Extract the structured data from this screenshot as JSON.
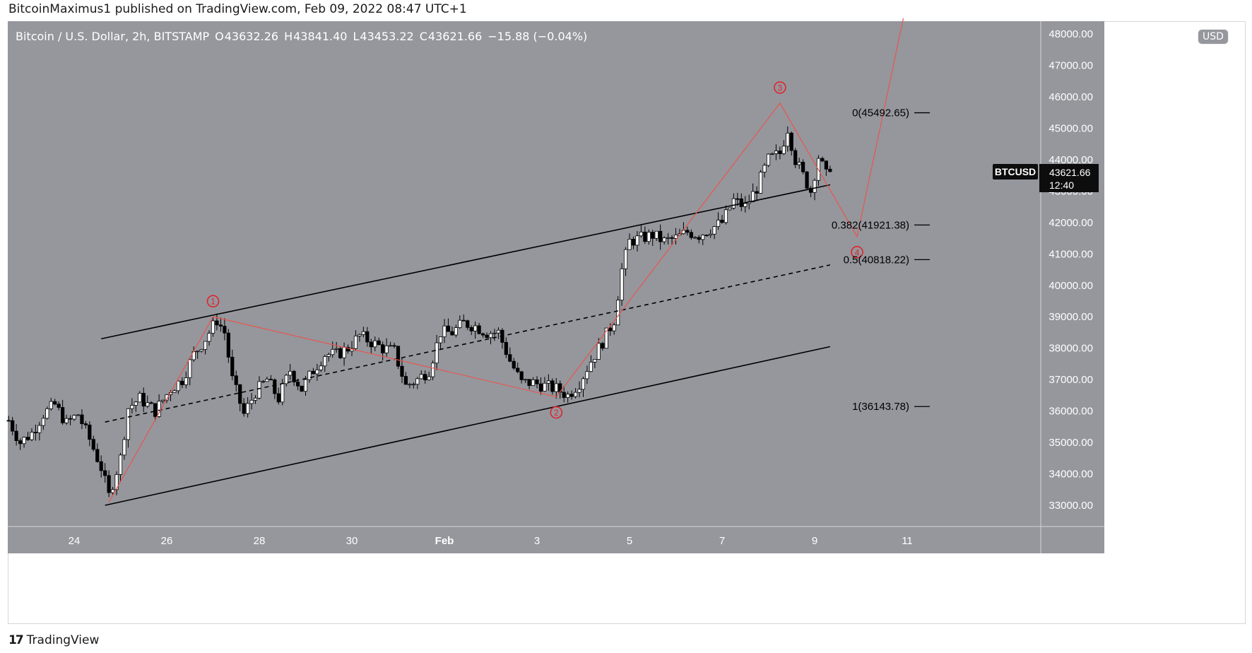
{
  "header": {
    "text": "BitcoinMaximus1 published on TradingView.com, Feb 09, 2022 08:47 UTC+1"
  },
  "legend": {
    "symbol": "Bitcoin / U.S. Dollar, 2h, BITSTAMP",
    "open_label": "O",
    "open": "43632.26",
    "high_label": "H",
    "high": "43841.40",
    "low_label": "L",
    "low": "43453.22",
    "close_label": "C",
    "close": "43621.66",
    "change": "−15.88 (−0.04%)"
  },
  "currency_badge": "USD",
  "price_tag": {
    "ticker": "BTCUSD",
    "price": "43621.66",
    "countdown": "12:40"
  },
  "footer": {
    "logo_glyph": "17",
    "brand": "TradingView"
  },
  "colors": {
    "background": "#95979d",
    "axis_bg": "#95979d",
    "up_candle": "#ffffff",
    "down_candle": "#000000",
    "wave_line": "#e8564f",
    "channel": "#000000",
    "wave_label": "#e0242a"
  },
  "chart_data": {
    "type": "candlestick",
    "interval": "2h",
    "y_axis": {
      "ticks": [
        "48000.00",
        "47000.00",
        "46000.00",
        "45000.00",
        "44000.00",
        "43000.00",
        "42000.00",
        "41000.00",
        "40000.00",
        "39000.00",
        "38000.00",
        "37000.00",
        "36000.00",
        "35000.00",
        "34000.00",
        "33000.00"
      ],
      "range": [
        32300,
        48500
      ]
    },
    "x_axis": {
      "ticks": [
        "24",
        "26",
        "28",
        "30",
        "Feb",
        "3",
        "5",
        "7",
        "9",
        "11"
      ]
    },
    "price_path": [
      [
        "Jan 22 14:00",
        35700
      ],
      [
        "Jan 22 20:00",
        35000
      ],
      [
        "Jan 23 02:00",
        35300
      ],
      [
        "Jan 23 08:00",
        35900
      ],
      [
        "Jan 23 14:00",
        36200
      ],
      [
        "Jan 23 20:00",
        35600
      ],
      [
        "Jan 24 02:00",
        35900
      ],
      [
        "Jan 24 08:00",
        35100
      ],
      [
        "Jan 24 14:00",
        34200
      ],
      [
        "Jan 24 18:00",
        33300
      ],
      [
        "Jan 25 00:00",
        34500
      ],
      [
        "Jan 25 04:00",
        36100
      ],
      [
        "Jan 25 10:00",
        36400
      ],
      [
        "Jan 25 18:00",
        36000
      ],
      [
        "Jan 26 02:00",
        36700
      ],
      [
        "Jan 26 08:00",
        37000
      ],
      [
        "Jan 26 14:00",
        37800
      ],
      [
        "Jan 26 20:00",
        38300
      ],
      [
        "Jan 27 02:00",
        38900
      ],
      [
        "Jan 27 06:00",
        38500
      ],
      [
        "Jan 27 10:00",
        37000
      ],
      [
        "Jan 27 16:00",
        35900
      ],
      [
        "Jan 27 22:00",
        36600
      ],
      [
        "Jan 28 04:00",
        37000
      ],
      [
        "Jan 28 10:00",
        36400
      ],
      [
        "Jan 28 16:00",
        37300
      ],
      [
        "Jan 28 22:00",
        36700
      ],
      [
        "Jan 29 04:00",
        37300
      ],
      [
        "Jan 29 10:00",
        37800
      ],
      [
        "Jan 29 16:00",
        37800
      ],
      [
        "Jan 29 22:00",
        38000
      ],
      [
        "Jan 30 04:00",
        38400
      ],
      [
        "Jan 30 10:00",
        38200
      ],
      [
        "Jan 30 16:00",
        38000
      ],
      [
        "Jan 30 22:00",
        37900
      ],
      [
        "Jan 31 04:00",
        36800
      ],
      [
        "Jan 31 10:00",
        37000
      ],
      [
        "Jan 31 16:00",
        37300
      ],
      [
        "Jan 31 22:00",
        38500
      ],
      [
        "Feb 1 04:00",
        38500
      ],
      [
        "Feb 1 10:00",
        38800
      ],
      [
        "Feb 1 16:00",
        38700
      ],
      [
        "Feb 1 22:00",
        38500
      ],
      [
        "Feb 2 04:00",
        38500
      ],
      [
        "Feb 2 10:00",
        37600
      ],
      [
        "Feb 2 16:00",
        36900
      ],
      [
        "Feb 2 22:00",
        36900
      ],
      [
        "Feb 3 04:00",
        36800
      ],
      [
        "Feb 3 10:00",
        36700
      ],
      [
        "Feb 3 16:00",
        36500
      ],
      [
        "Feb 3 22:00",
        36900
      ],
      [
        "Feb 4 04:00",
        37600
      ],
      [
        "Feb 4 10:00",
        38200
      ],
      [
        "Feb 4 16:00",
        38900
      ],
      [
        "Feb 4 20:00",
        40500
      ],
      [
        "Feb 5 00:00",
        41400
      ],
      [
        "Feb 5 06:00",
        41500
      ],
      [
        "Feb 5 12:00",
        41600
      ],
      [
        "Feb 5 18:00",
        41400
      ],
      [
        "Feb 6 00:00",
        41500
      ],
      [
        "Feb 6 06:00",
        41700
      ],
      [
        "Feb 6 12:00",
        41600
      ],
      [
        "Feb 6 18:00",
        41800
      ],
      [
        "Feb 7 00:00",
        42000
      ],
      [
        "Feb 7 06:00",
        42700
      ],
      [
        "Feb 7 12:00",
        42500
      ],
      [
        "Feb 7 18:00",
        43100
      ],
      [
        "Feb 8 00:00",
        44000
      ],
      [
        "Feb 8 06:00",
        44200
      ],
      [
        "Feb 8 10:00",
        45000
      ],
      [
        "Feb 8 14:00",
        44000
      ],
      [
        "Feb 8 18:00",
        43500
      ],
      [
        "Feb 8 22:00",
        43000
      ],
      [
        "Feb 9 02:00",
        44100
      ],
      [
        "Feb 9 06:00",
        43500
      ],
      [
        "Feb 9 08:00",
        43621.66
      ]
    ],
    "channel": {
      "upper": [
        [
          "Jan 24 14:00",
          38300
        ],
        [
          "Feb 9 08:00",
          43200
        ]
      ],
      "lower": [
        [
          "Jan 24 16:00",
          33000
        ],
        [
          "Feb 9 08:00",
          38050
        ]
      ],
      "mid": [
        [
          "Jan 24 16:00",
          35650
        ],
        [
          "Feb 9 08:00",
          40650
        ]
      ]
    },
    "wave_count": [
      {
        "label": "1",
        "x": "Jan 27 00:00",
        "y": 39000
      },
      {
        "label": "2",
        "x": "Feb 3 10:00",
        "y": 36450
      },
      {
        "label": "3",
        "x": "Feb 8 06:00",
        "y": 45800
      },
      {
        "label": "4",
        "x": "Feb 9 22:00",
        "y": 41550
      }
    ],
    "wave_origin": {
      "x": "Jan 24 18:00",
      "y": 33100
    },
    "projection_end": {
      "x": "Feb 10 22:00",
      "y": 48500
    },
    "fibonacci": [
      {
        "label": "0(45492.65)",
        "value": 45492.65
      },
      {
        "label": "0.382(41921.38)",
        "value": 41921.38
      },
      {
        "label": "0.5(40818.22)",
        "value": 40818.22
      },
      {
        "label": "1(36143.78)",
        "value": 36143.78
      }
    ]
  }
}
